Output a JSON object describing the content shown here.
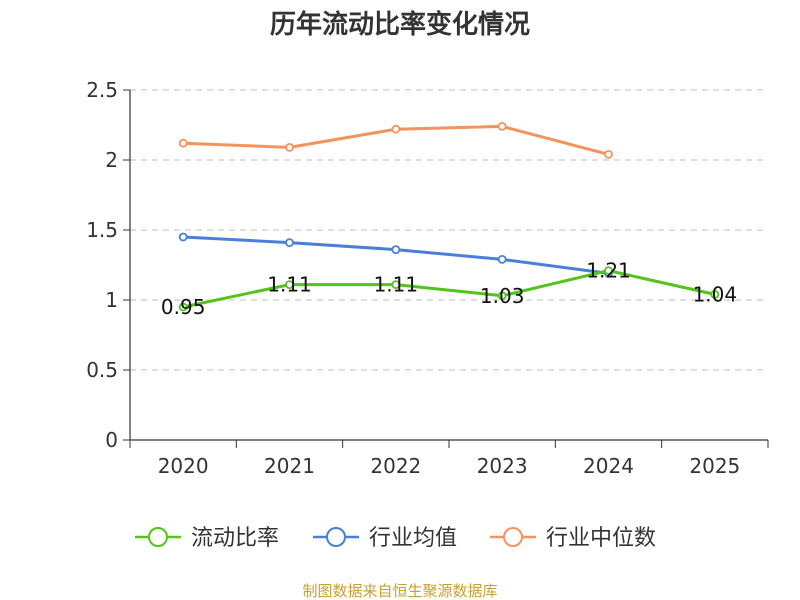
{
  "chart_data": {
    "type": "line",
    "title": "历年流动比率变化情况",
    "categories": [
      "2020",
      "2021",
      "2022",
      "2023",
      "2024",
      "2025"
    ],
    "ylim": [
      0,
      2.5
    ],
    "yticks": [
      "0",
      "0.5",
      "1",
      "1.5",
      "2",
      "2.5"
    ],
    "ytick_values": [
      0,
      0.5,
      1,
      1.5,
      2,
      2.5
    ],
    "grid": true,
    "legend_position": "bottom",
    "series": [
      {
        "name": "流动比率",
        "color": "#52c41a",
        "values": [
          0.95,
          1.11,
          1.11,
          1.03,
          1.21,
          1.04
        ],
        "labels": [
          "0.95",
          "1.11",
          "1.11",
          "1.03",
          "1.21",
          "1.04"
        ]
      },
      {
        "name": "行业均值",
        "color": "#4a7fd8",
        "values": [
          1.45,
          1.41,
          1.36,
          1.29,
          1.19,
          null
        ],
        "labels": null
      },
      {
        "name": "行业中位数",
        "color": "#f5935c",
        "values": [
          2.12,
          2.09,
          2.22,
          2.24,
          2.04,
          null
        ],
        "labels": null
      }
    ]
  },
  "footer": {
    "source": "制图数据来自恒生聚源数据库"
  }
}
